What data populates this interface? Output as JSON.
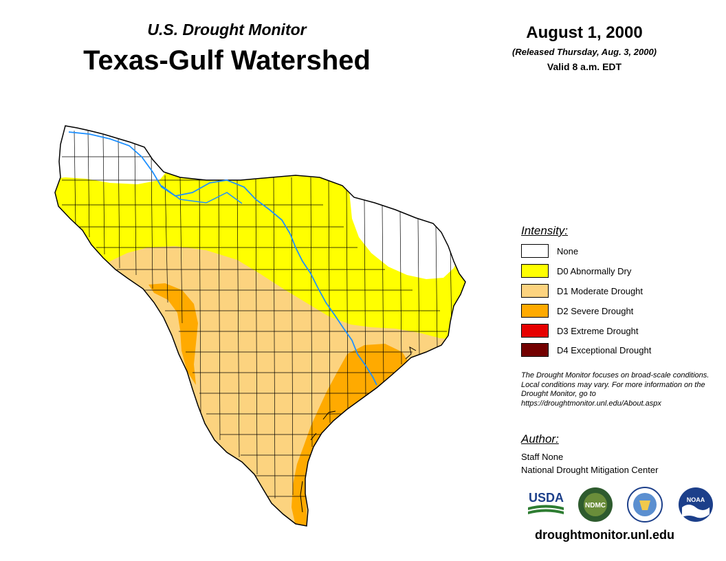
{
  "header": {
    "subtitle": "U.S. Drought Monitor",
    "title": "Texas-Gulf Watershed",
    "date": "August 1, 2000",
    "released": "(Released Thursday, Aug. 3, 2000)",
    "valid": "Valid 8 a.m. EDT"
  },
  "legend": {
    "title": "Intensity:",
    "items": [
      {
        "label": "None",
        "color": "#ffffff"
      },
      {
        "label": "D0 Abnormally Dry",
        "color": "#ffff00"
      },
      {
        "label": "D1 Moderate Drought",
        "color": "#fcd37f"
      },
      {
        "label": "D2 Severe Drought",
        "color": "#ffaa00"
      },
      {
        "label": "D3 Extreme Drought",
        "color": "#e60000"
      },
      {
        "label": "D4 Exceptional Drought",
        "color": "#730000"
      }
    ]
  },
  "note": "The Drought Monitor focuses on broad-scale conditions. Local conditions may vary. For more information on the Drought Monitor, go to https://droughtmonitor.unl.edu/About.aspx",
  "author": {
    "title": "Author:",
    "name": "Staff None",
    "org": "National Drought Mitigation Center"
  },
  "logos": [
    {
      "name": "usda-logo",
      "text": "USDA"
    },
    {
      "name": "ndmc-logo",
      "text": "NDMC"
    },
    {
      "name": "doc-logo",
      "text": ""
    },
    {
      "name": "noaa-logo",
      "text": "NOAA"
    }
  ],
  "footer": {
    "url": "droughtmonitor.unl.edu"
  },
  "colors": {
    "river": "#1e90ff",
    "border": "#000000"
  }
}
